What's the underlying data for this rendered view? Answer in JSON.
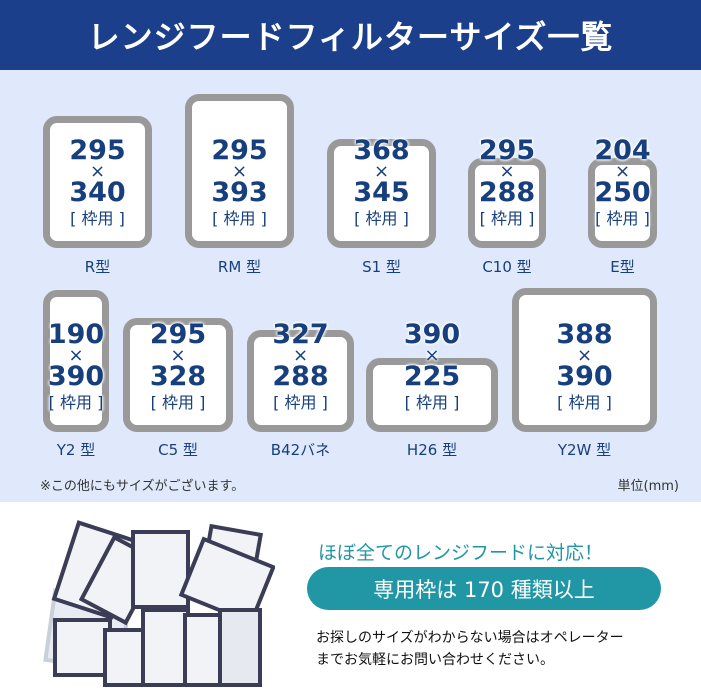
{
  "title": "レンジフードフィルターサイズ一覧",
  "frame_label": "[ 枠用 ]",
  "times": "×",
  "filters": [
    {
      "model": "R型",
      "width": "295",
      "height": "340"
    },
    {
      "model": "RM 型",
      "width": "295",
      "height": "393"
    },
    {
      "model": "S1 型",
      "width": "368",
      "height": "345"
    },
    {
      "model": "C10 型",
      "width": "295",
      "height": "288"
    },
    {
      "model": "E型",
      "width": "204",
      "height": "250"
    },
    {
      "model": "Y2 型",
      "width": "190",
      "height": "390"
    },
    {
      "model": "C5 型",
      "width": "295",
      "height": "328"
    },
    {
      "model": "B42バネ",
      "width": "327",
      "height": "288"
    },
    {
      "model": "H26 型",
      "width": "390",
      "height": "225"
    },
    {
      "model": "Y2W 型",
      "width": "388",
      "height": "390"
    }
  ],
  "note": "※この他にもサイズがございます。",
  "unit": "単位(mm)",
  "promo": {
    "headline": "ほぼ全てのレンジフードに対応！",
    "badge": "専用枠は 170 種類以上",
    "line1": "お探しのサイズがわからない場合はオペレーター",
    "line2": "までお気軽にお問い合わせください。"
  },
  "colors": {
    "header": "#1b3f8b",
    "panel": "#dfe9fb",
    "text": "#173f7e",
    "teal": "#2196a5",
    "frame": "#999999"
  }
}
